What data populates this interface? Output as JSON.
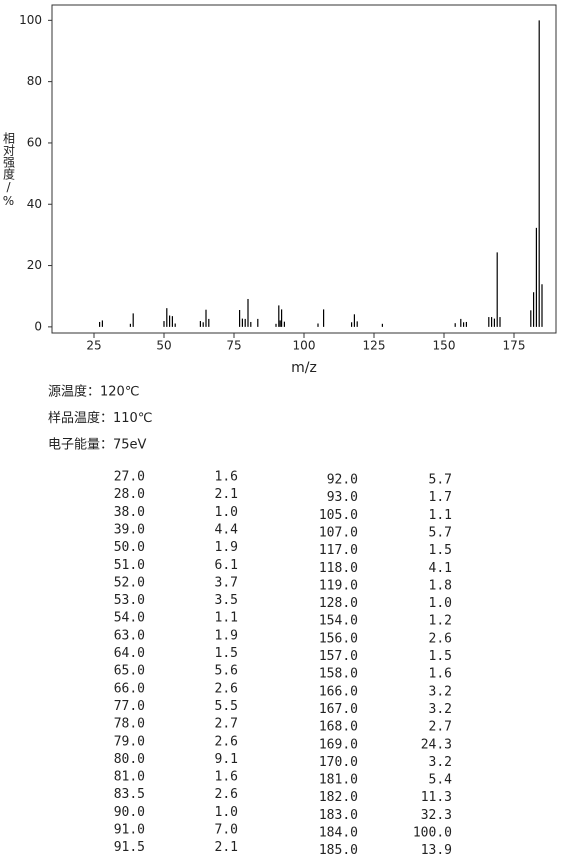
{
  "chart_data": {
    "type": "bar",
    "y_label": "相对强度/%",
    "x_label": "m/z",
    "color": "#000000",
    "x": [
      27.0,
      28.0,
      38.0,
      39.0,
      50.0,
      51.0,
      52.0,
      53.0,
      54.0,
      63.0,
      64.0,
      65.0,
      66.0,
      77.0,
      78.0,
      79.0,
      80.0,
      81.0,
      83.5,
      90.0,
      91.0,
      91.5,
      92.0,
      93.0,
      105.0,
      107.0,
      117.0,
      118.0,
      119.0,
      128.0,
      154.0,
      156.0,
      157.0,
      158.0,
      166.0,
      167.0,
      168.0,
      169.0,
      170.0,
      181.0,
      182.0,
      183.0,
      184.0,
      185.0
    ],
    "values": [
      1.6,
      2.1,
      1.0,
      4.4,
      1.9,
      6.1,
      3.7,
      3.5,
      1.1,
      1.9,
      1.5,
      5.6,
      2.6,
      5.5,
      2.7,
      2.6,
      9.1,
      1.6,
      2.6,
      1.0,
      7.0,
      2.1,
      5.7,
      1.7,
      1.1,
      5.7,
      1.5,
      4.1,
      1.8,
      1.0,
      1.2,
      2.6,
      1.5,
      1.6,
      3.2,
      3.2,
      2.7,
      24.3,
      3.2,
      5.4,
      11.3,
      32.3,
      100.0,
      13.9
    ],
    "xlim": [
      10,
      190
    ],
    "ylim": [
      -2,
      105
    ],
    "xticks": [
      25,
      50,
      75,
      100,
      125,
      150,
      175
    ],
    "yticks": [
      0,
      20,
      40,
      60,
      80,
      100
    ]
  },
  "conditions": [
    "源温度：120℃",
    "样品温度：110℃",
    "电子能量：75eV"
  ],
  "table": {
    "left": [
      [
        "27.0",
        "1.6"
      ],
      [
        "28.0",
        "2.1"
      ],
      [
        "38.0",
        "1.0"
      ],
      [
        "39.0",
        "4.4"
      ],
      [
        "50.0",
        "1.9"
      ],
      [
        "51.0",
        "6.1"
      ],
      [
        "52.0",
        "3.7"
      ],
      [
        "53.0",
        "3.5"
      ],
      [
        "54.0",
        "1.1"
      ],
      [
        "63.0",
        "1.9"
      ],
      [
        "64.0",
        "1.5"
      ],
      [
        "65.0",
        "5.6"
      ],
      [
        "66.0",
        "2.6"
      ],
      [
        "77.0",
        "5.5"
      ],
      [
        "78.0",
        "2.7"
      ],
      [
        "79.0",
        "2.6"
      ],
      [
        "80.0",
        "9.1"
      ],
      [
        "81.0",
        "1.6"
      ],
      [
        "83.5",
        "2.6"
      ],
      [
        "90.0",
        "1.0"
      ],
      [
        "91.0",
        "7.0"
      ],
      [
        "91.5",
        "2.1"
      ]
    ],
    "right": [
      [
        "92.0",
        "5.7"
      ],
      [
        "93.0",
        "1.7"
      ],
      [
        "105.0",
        "1.1"
      ],
      [
        "107.0",
        "5.7"
      ],
      [
        "117.0",
        "1.5"
      ],
      [
        "118.0",
        "4.1"
      ],
      [
        "119.0",
        "1.8"
      ],
      [
        "128.0",
        "1.0"
      ],
      [
        "154.0",
        "1.2"
      ],
      [
        "156.0",
        "2.6"
      ],
      [
        "157.0",
        "1.5"
      ],
      [
        "158.0",
        "1.6"
      ],
      [
        "166.0",
        "3.2"
      ],
      [
        "167.0",
        "3.2"
      ],
      [
        "168.0",
        "2.7"
      ],
      [
        "169.0",
        "24.3"
      ],
      [
        "170.0",
        "3.2"
      ],
      [
        "181.0",
        "5.4"
      ],
      [
        "182.0",
        "11.3"
      ],
      [
        "183.0",
        "32.3"
      ],
      [
        "184.0",
        "100.0"
      ],
      [
        "185.0",
        "13.9"
      ]
    ]
  }
}
